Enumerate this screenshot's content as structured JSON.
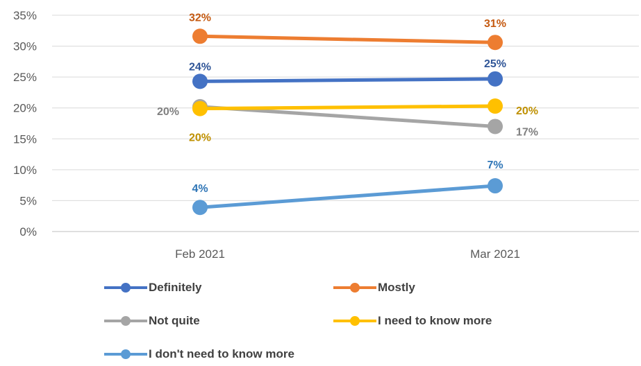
{
  "chart_data": {
    "type": "line",
    "categories": [
      "Feb 2021",
      "Mar 2021"
    ],
    "ylim": [
      0,
      35
    ],
    "yticks": [
      "0%",
      "5%",
      "10%",
      "15%",
      "20%",
      "25%",
      "30%",
      "35%"
    ],
    "grid": true,
    "legend_position": "bottom",
    "series": [
      {
        "name": "Definitely",
        "values": [
          24.3,
          24.7
        ],
        "labels": [
          "24%",
          "25%"
        ],
        "color": "#4472C4"
      },
      {
        "name": "Mostly",
        "values": [
          31.6,
          30.6
        ],
        "labels": [
          "32%",
          "31%"
        ],
        "color": "#ED7D31"
      },
      {
        "name": "Not quite",
        "values": [
          20.2,
          17.0
        ],
        "labels": [
          "20%",
          "17%"
        ],
        "color": "#A5A5A5"
      },
      {
        "name": "I need to know more",
        "values": [
          19.9,
          20.3
        ],
        "labels": [
          "20%",
          "20%"
        ],
        "color": "#FFC000"
      },
      {
        "name": "I don't need to know more",
        "values": [
          3.9,
          7.4
        ],
        "labels": [
          "4%",
          "7%"
        ],
        "color": "#5B9BD5"
      }
    ]
  }
}
